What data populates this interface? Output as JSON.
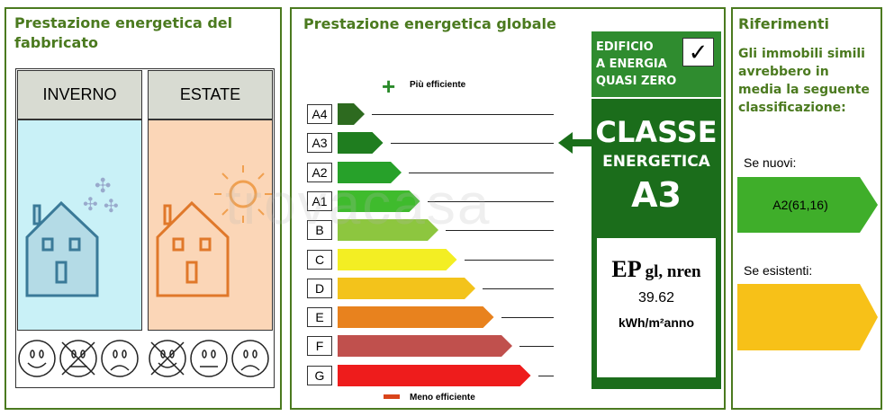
{
  "watermark": "trovacasa",
  "fabbricato": {
    "title": "Prestazione energetica del fabbricato",
    "winter": "INVERNO",
    "summer": "ESTATE",
    "winter_faces": [
      "happy",
      "neutral-crossed",
      "sad"
    ],
    "summer_faces": [
      "happy-crossed",
      "neutral",
      "sad"
    ]
  },
  "globale": {
    "title": "Prestazione energetica globale",
    "more_efficient": "Più efficiente",
    "less_efficient": "Meno efficiente",
    "classes": [
      {
        "label": "A4",
        "color": "#2d6a1f"
      },
      {
        "label": "A3",
        "color": "#1f7d1f"
      },
      {
        "label": "A2",
        "color": "#27a12a"
      },
      {
        "label": "A1",
        "color": "#3fbb2d"
      },
      {
        "label": "B",
        "color": "#8dc63f"
      },
      {
        "label": "C",
        "color": "#f3ee23"
      },
      {
        "label": "D",
        "color": "#f3c31b"
      },
      {
        "label": "E",
        "color": "#e8821e"
      },
      {
        "label": "F",
        "color": "#c0504d"
      },
      {
        "label": "G",
        "color": "#ee1c1c"
      }
    ],
    "current_class": "A3",
    "nzeb": {
      "line1": "EDIFICIO",
      "line2": "A ENERGIA",
      "line3": "QUASI ZERO",
      "checked": true
    },
    "classe_label1": "CLASSE",
    "classe_label2": "ENERGETICA",
    "classe_value": "A3",
    "ep_label": "EP",
    "ep_sub": "gl, nren",
    "ep_value": "39.62",
    "ep_unit": "kWh/m²anno"
  },
  "riferimenti": {
    "title": "Riferimenti",
    "text": "Gli immobili simili avrebbero in media la seguente classificazione:",
    "new_label": "Se nuovi:",
    "new_value": "A2(61,16)",
    "new_color": "#3fae2a",
    "existing_label": "Se esistenti:",
    "existing_value": "",
    "existing_color": "#f7c118"
  }
}
